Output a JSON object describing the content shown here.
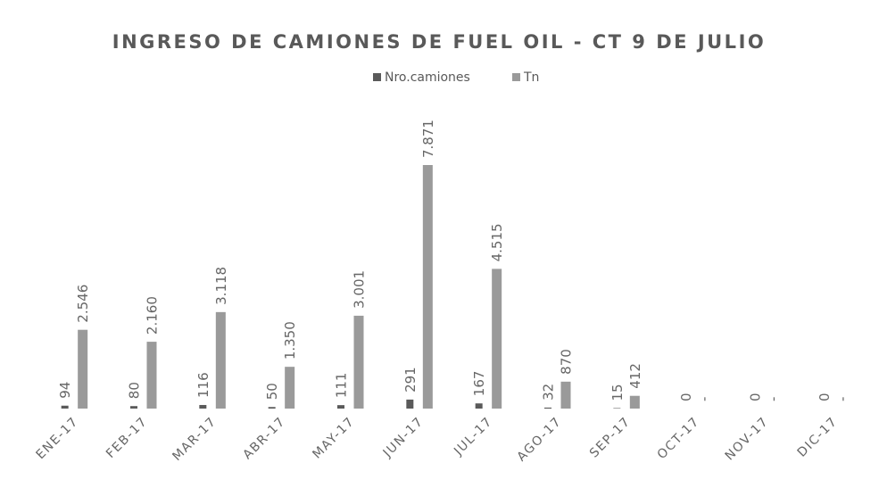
{
  "chart_data": {
    "type": "bar",
    "title": "INGRESO DE CAMIONES DE FUEL OIL - CT 9 DE JULIO",
    "categories": [
      "ENE-17",
      "FEB-17",
      "MAR-17",
      "ABR-17",
      "MAY-17",
      "JUN-17",
      "JUL-17",
      "AGO-17",
      "SEP-17",
      "OCT-17",
      "NOV-17",
      "DIC-17"
    ],
    "series": [
      {
        "name": "Nro.camiones",
        "color": "#5a5a5a",
        "values": [
          94,
          80,
          116,
          50,
          111,
          291,
          167,
          32,
          15,
          0,
          0,
          0
        ]
      },
      {
        "name": "Tn",
        "color": "#9a9a9a",
        "values": [
          2546,
          2160,
          3118,
          1350,
          3001,
          7871,
          4515,
          870,
          412,
          0,
          0,
          0
        ],
        "value_labels": [
          "2.546",
          "2.160",
          "3.118",
          "1.350",
          "3.001",
          "7.871",
          "4.515",
          "870",
          "412",
          "-",
          "-",
          "-"
        ]
      }
    ],
    "legend": "top"
  }
}
